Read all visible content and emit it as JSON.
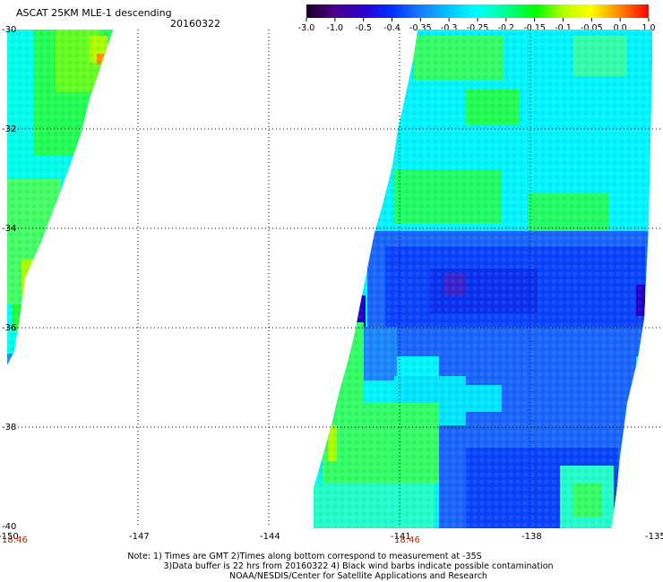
{
  "header": {
    "title": "ASCAT 25KM MLE-1 descending",
    "date": "20160322"
  },
  "colorbar": {
    "labels": [
      "-3.0",
      "-1.0",
      "-0.5",
      "-0.4",
      "-0.35",
      "-0.3",
      "-0.25",
      "-0.2",
      "-0.15",
      "-0.1",
      "-0.05",
      "0.0",
      "1.0"
    ],
    "colors": [
      "#1a0026",
      "#4a0088",
      "#2a00d0",
      "#0030ff",
      "#1a78ff",
      "#00c8ff",
      "#00ffff",
      "#00ff96",
      "#00ff00",
      "#b4ff00",
      "#ffff00",
      "#ff8000",
      "#ff0000"
    ]
  },
  "map": {
    "lat_labels": [
      "-30",
      "-32",
      "-34",
      "-36",
      "-38",
      "-40"
    ],
    "lon_labels": [
      "-150",
      "-147",
      "-144",
      "-141",
      "-138",
      "-135"
    ],
    "time_labels": [
      "18:46",
      "18:46"
    ]
  },
  "notes": {
    "line1": "Note: 1) Times are GMT 2)Times along bottom correspond to measurement at -35S",
    "line2": "3)Data buffer is 22 hrs from 20160322 4) Black wind barbs indicate possible contamination",
    "line3": "NOAA/NESDIS/Center for Satellite Applications and Research"
  }
}
